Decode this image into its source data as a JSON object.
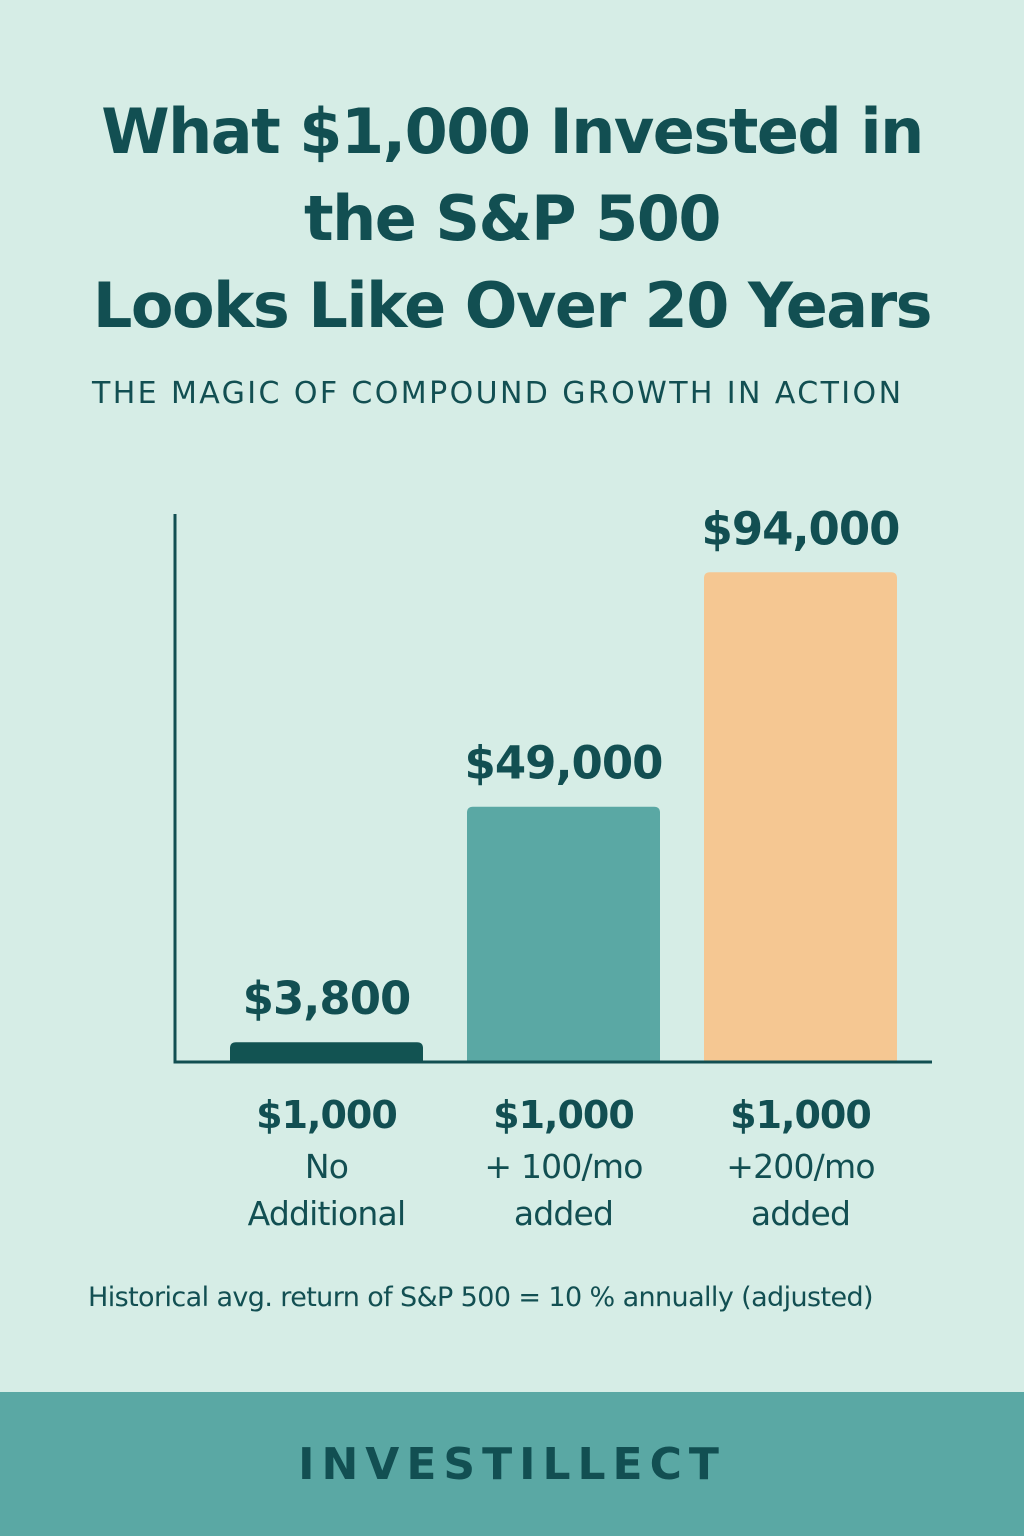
{
  "title_lines": [
    "What $1,000 Invested in",
    "the S&P 500",
    "Looks Like Over 20 Years"
  ],
  "subtitle": "THE MAGIC OF COMPOUND GROWTH IN ACTION",
  "note": "Historical avg. return of S&P 500 = 10 % annually (adjusted)",
  "brand": "INVESTILLECT",
  "colors": {
    "background": "#d6ede6",
    "text": "#124f52",
    "footer": "#5aa8a4"
  },
  "chart_data": {
    "type": "bar",
    "title": "What $1,000 Invested in the S&P 500 Looks Like Over 20 Years",
    "xlabel": "",
    "ylabel": "",
    "ylim": [
      0,
      100000
    ],
    "grid": false,
    "categories": [
      {
        "principal": "$1,000",
        "detail": [
          "No",
          "Additional"
        ]
      },
      {
        "principal": "$1,000",
        "detail": [
          "+ 100/mo",
          "added"
        ]
      },
      {
        "principal": "$1,000",
        "detail": [
          "+200/mo",
          "added"
        ]
      }
    ],
    "values": [
      3800,
      49000,
      94000
    ],
    "data_labels": [
      "$3,800",
      "$49,000",
      "$94,000"
    ],
    "colors": [
      "#125352",
      "#5aa8a4",
      "#f5c792"
    ]
  }
}
